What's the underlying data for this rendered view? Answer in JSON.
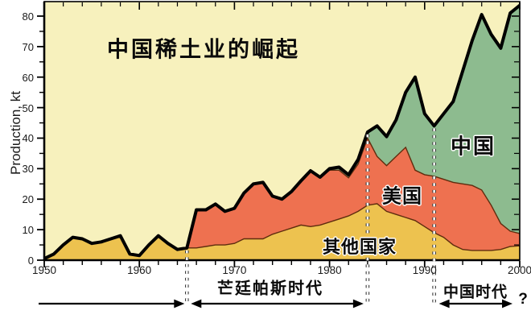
{
  "chart_data": {
    "type": "area",
    "stacked": true,
    "title": "中国稀土业的崛起",
    "ylabel": "Production, kt",
    "xlim": [
      1950,
      2000
    ],
    "ylim": [
      0,
      85
    ],
    "x_major_ticks": [
      1950,
      1960,
      1970,
      1980,
      1990,
      2000
    ],
    "x_minor_step": 2,
    "y_major_ticks": [
      0,
      10,
      20,
      30,
      40,
      50,
      60,
      70,
      80
    ],
    "y_minor_step": 5,
    "grid": false,
    "plot_bg": "#f7f1bd",
    "years": [
      1950,
      1951,
      1952,
      1953,
      1954,
      1955,
      1956,
      1957,
      1958,
      1959,
      1960,
      1961,
      1962,
      1963,
      1964,
      1965,
      1966,
      1967,
      1968,
      1969,
      1970,
      1971,
      1972,
      1973,
      1974,
      1975,
      1976,
      1977,
      1978,
      1979,
      1980,
      1981,
      1982,
      1983,
      1984,
      1985,
      1986,
      1987,
      1988,
      1989,
      1990,
      1991,
      1992,
      1993,
      1994,
      1995,
      1996,
      1997,
      1998,
      1999,
      2000
    ],
    "series": [
      {
        "name": "其他国家",
        "color": "#edc24f",
        "line_color": "#5f2c0e",
        "values": [
          0.5,
          2,
          5,
          7.5,
          7,
          5.5,
          6,
          7,
          8,
          2,
          1.5,
          5,
          8,
          5.5,
          3.5,
          4,
          4,
          4.5,
          5,
          5,
          5.5,
          7,
          7,
          7,
          8.5,
          9.5,
          10.5,
          11.5,
          11,
          11.5,
          12.5,
          13.5,
          14.5,
          16,
          18,
          18.5,
          16,
          15,
          14,
          13,
          11,
          9,
          7.5,
          5,
          3.5,
          3.2,
          3.2,
          3.2,
          3.5,
          4.5,
          4.7
        ]
      },
      {
        "name": "美国",
        "color": "#ee7150",
        "line_color": "#5f2c0e",
        "values": [
          0,
          0,
          0,
          0,
          0,
          0,
          0,
          0,
          0,
          0,
          0,
          0,
          0,
          0,
          0,
          0,
          12.5,
          12,
          13.4,
          11,
          11.5,
          15,
          18,
          18.5,
          12.5,
          10.5,
          12,
          14.5,
          18.3,
          15.7,
          17,
          16,
          12.5,
          15.5,
          22,
          15.5,
          15,
          19,
          23,
          16.5,
          17,
          18.5,
          19,
          20.5,
          21.5,
          21.3,
          19.8,
          14.8,
          8.5,
          5,
          4
        ]
      },
      {
        "name": "中国",
        "color": "#8dbb8f",
        "line_color": "#000000",
        "values": [
          0,
          0,
          0,
          0,
          0,
          0,
          0,
          0,
          0,
          0,
          0,
          0,
          0,
          0,
          0,
          0,
          0,
          0,
          0,
          0,
          0,
          0,
          0,
          0,
          0,
          0,
          0,
          0,
          0,
          0,
          0.5,
          1,
          1,
          1.5,
          2,
          10,
          9.5,
          12,
          18,
          30.5,
          20,
          16.5,
          21.5,
          26.5,
          37,
          47.5,
          57.5,
          56,
          57.5,
          71.5,
          74.8
        ]
      }
    ],
    "total_line": {
      "color": "#000000",
      "width": 4
    },
    "era_dividers": [
      1965,
      1984,
      1991
    ],
    "eras": [
      {
        "label": "",
        "start": 1950,
        "end": 1965,
        "arrow": "right"
      },
      {
        "label": "芒廷帕斯时代",
        "start": 1965,
        "end": 1984,
        "arrow": "both"
      },
      {
        "label": "中国时代",
        "start": 1991,
        "end": 2000,
        "arrow": "both",
        "suffix": "?"
      }
    ]
  }
}
